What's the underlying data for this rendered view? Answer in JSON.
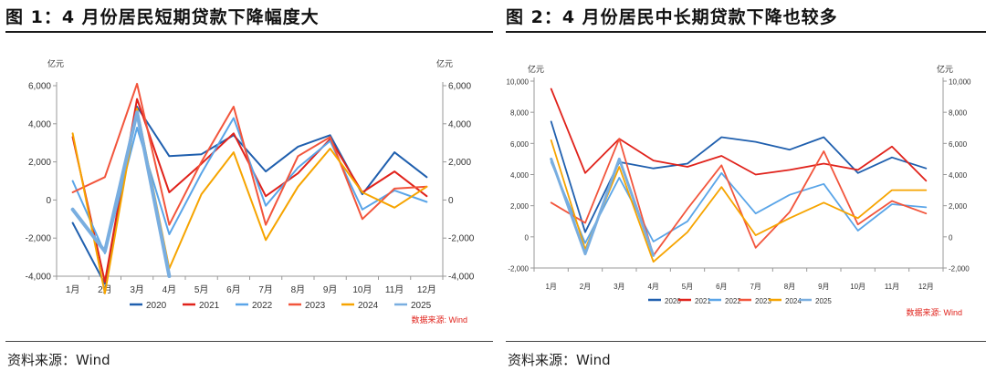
{
  "figures": [
    {
      "title": "图 1：4 月份居民短期贷款下降幅度大",
      "source": "资料来源：Wind",
      "chart_data": {
        "type": "line",
        "unit_left": "亿元",
        "unit_right": "亿元",
        "categories": [
          "1月",
          "2月",
          "3月",
          "4月",
          "5月",
          "6月",
          "7月",
          "8月",
          "9月",
          "10月",
          "11月",
          "12月"
        ],
        "ylim": [
          -4000,
          6000
        ],
        "yticks": [
          -4000,
          -2000,
          0,
          2000,
          4000,
          6000
        ],
        "ytick_labels": [
          "-4,000",
          "-2,000",
          "0",
          "2,000",
          "4,000",
          "6,000"
        ],
        "source_note": "数据来源: Wind",
        "legend_position": "bottom",
        "grid": false,
        "series": [
          {
            "name": "2020",
            "color": "#1f5fae",
            "width": 2,
            "values": [
              -1200,
              -4400,
              4900,
              2300,
              2400,
              3400,
              1500,
              2800,
              3400,
              300,
              2500,
              1200
            ]
          },
          {
            "name": "2021",
            "color": "#e0221b",
            "width": 2,
            "values": [
              3300,
              -4300,
              5300,
              400,
              1900,
              3500,
              200,
              1400,
              3200,
              400,
              1500,
              200
            ]
          },
          {
            "name": "2022",
            "color": "#5aa5e8",
            "width": 2,
            "values": [
              1000,
              -2800,
              3800,
              -1800,
              1400,
              4300,
              -300,
              1700,
              3100,
              -500,
              500,
              -100
            ]
          },
          {
            "name": "2023",
            "color": "#f2553c",
            "width": 2,
            "values": [
              400,
              1200,
              6100,
              -1300,
              2000,
              4900,
              -1300,
              2300,
              3300,
              -1000,
              600,
              700
            ]
          },
          {
            "name": "2024",
            "color": "#f6a400",
            "width": 2,
            "values": [
              3500,
              -4900,
              4800,
              -3600,
              300,
              2500,
              -2100,
              700,
              2700,
              400,
              -400,
              700
            ]
          },
          {
            "name": "2025",
            "color": "#79aee0",
            "width": 4,
            "values": [
              -500,
              -2700,
              4600,
              -4000,
              null,
              null,
              null,
              null,
              null,
              null,
              null,
              null
            ]
          }
        ]
      }
    },
    {
      "title": "图 2：4 月份居民中长期贷款下降也较多",
      "source": "资料来源：Wind",
      "chart_data": {
        "type": "line",
        "unit_left": "亿元",
        "unit_right": "亿元",
        "categories": [
          "1月",
          "2月",
          "3月",
          "4月",
          "5月",
          "6月",
          "7月",
          "8月",
          "9月",
          "10月",
          "11月",
          "12月"
        ],
        "ylim": [
          -2000,
          10000
        ],
        "yticks": [
          -2000,
          0,
          2000,
          4000,
          6000,
          8000,
          10000
        ],
        "ytick_labels": [
          "-2,000",
          "0",
          "2,000",
          "4,000",
          "6,000",
          "8,000",
          "10,000"
        ],
        "source_note": "数据来源: Wind",
        "legend_position": "bottom",
        "grid": false,
        "series": [
          {
            "name": "2020",
            "color": "#1f5fae",
            "width": 1.8,
            "values": [
              7400,
              300,
              4800,
              4400,
              4700,
              6400,
              6100,
              5600,
              6400,
              4100,
              5100,
              4400
            ]
          },
          {
            "name": "2021",
            "color": "#e0221b",
            "width": 1.8,
            "values": [
              9500,
              4100,
              6300,
              4900,
              4500,
              5200,
              4000,
              4300,
              4700,
              4300,
              5800,
              3600
            ]
          },
          {
            "name": "2022",
            "color": "#5aa5e8",
            "width": 1.8,
            "values": [
              4800,
              -400,
              3800,
              -300,
              1000,
              4100,
              1500,
              2700,
              3400,
              400,
              2100,
              1900
            ]
          },
          {
            "name": "2023",
            "color": "#f2553c",
            "width": 1.8,
            "values": [
              2200,
              900,
              6300,
              -1200,
              1800,
              4600,
              -700,
              1600,
              5500,
              800,
              2300,
              1500
            ]
          },
          {
            "name": "2024",
            "color": "#f6a400",
            "width": 1.8,
            "values": [
              6200,
              -800,
              4500,
              -1600,
              300,
              3200,
              100,
              1200,
              2200,
              1200,
              3000,
              3000
            ]
          },
          {
            "name": "2025",
            "color": "#79aee0",
            "width": 3,
            "values": [
              5000,
              -1100,
              5000,
              -1200,
              null,
              null,
              null,
              null,
              null,
              null,
              null,
              null
            ]
          }
        ]
      }
    }
  ]
}
